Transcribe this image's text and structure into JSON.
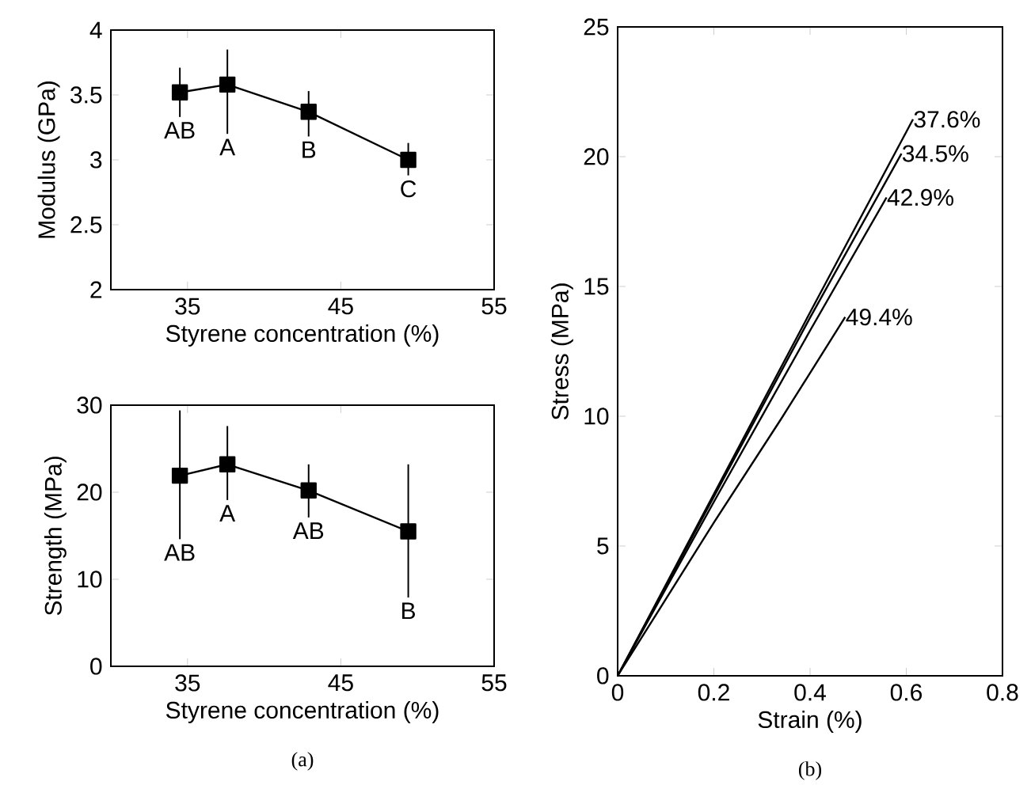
{
  "chart_data": [
    {
      "type": "line",
      "xlabel": "Styrene concentration (%)",
      "ylabel": "Modulus (GPa)",
      "xlim": [
        30,
        55
      ],
      "ylim": [
        2,
        4
      ],
      "xticks": [
        35,
        45,
        55
      ],
      "yticks": [
        2,
        2.5,
        3,
        3.5,
        4
      ],
      "marker": "square",
      "series": [
        {
          "color": "#000000",
          "x": [
            34.5,
            37.6,
            42.9,
            49.4
          ],
          "values": [
            3.52,
            3.58,
            3.37,
            3.0
          ],
          "errors": [
            [
              3.33,
              3.71
            ],
            [
              3.2,
              3.85
            ],
            [
              3.18,
              3.53
            ],
            [
              2.88,
              3.13
            ]
          ]
        }
      ],
      "annotations": [
        {
          "text": "AB",
          "x": 34.5,
          "y": 3.52
        },
        {
          "text": "A",
          "x": 37.6,
          "y": 3.58
        },
        {
          "text": "B",
          "x": 42.9,
          "y": 3.37
        },
        {
          "text": "C",
          "x": 49.4,
          "y": 3.0
        }
      ]
    },
    {
      "type": "line",
      "xlabel": "Styrene concentration (%)",
      "ylabel": "Strength (MPa)",
      "xlim": [
        30,
        55
      ],
      "ylim": [
        0,
        30
      ],
      "xticks": [
        35,
        45,
        55
      ],
      "yticks": [
        0,
        10,
        20,
        30
      ],
      "marker": "square",
      "series": [
        {
          "color": "#000000",
          "x": [
            34.5,
            37.6,
            42.9,
            49.4
          ],
          "values": [
            21.9,
            23.2,
            20.2,
            15.5
          ],
          "errors": [
            [
              14.6,
              29.4
            ],
            [
              19.1,
              27.6
            ],
            [
              17.1,
              23.2
            ],
            [
              7.9,
              23.2
            ]
          ]
        }
      ],
      "annotations": [
        {
          "text": "AB",
          "x": 34.5,
          "y": 21.9
        },
        {
          "text": "A",
          "x": 37.6,
          "y": 23.2
        },
        {
          "text": "AB",
          "x": 42.9,
          "y": 20.2
        },
        {
          "text": "B",
          "x": 49.4,
          "y": 7.9
        },
        "(a)"
      ]
    },
    {
      "type": "line",
      "xlabel": "Strain (%)",
      "ylabel": "Stress (MPa)",
      "xlim": [
        0,
        0.8
      ],
      "ylim": [
        0,
        25
      ],
      "xticks": [
        0,
        0.2,
        0.4,
        0.6,
        0.8
      ],
      "yticks": [
        0,
        5,
        10,
        15,
        20,
        25
      ],
      "series": [
        {
          "name": "37.6%",
          "color": "#000000",
          "x": [
            0,
            0.2,
            0.4,
            0.614
          ],
          "values": [
            0,
            7.0,
            14.0,
            21.44
          ]
        },
        {
          "name": "34.5%",
          "color": "#000000",
          "x": [
            0,
            0.2,
            0.4,
            0.59
          ],
          "values": [
            0,
            6.9,
            13.8,
            20.12
          ]
        },
        {
          "name": "42.9%",
          "color": "#000000",
          "x": [
            0,
            0.2,
            0.4,
            0.559
          ],
          "values": [
            0,
            6.7,
            13.3,
            18.43
          ]
        },
        {
          "name": "49.4%",
          "color": "#000000",
          "x": [
            0,
            0.2,
            0.34,
            0.473
          ],
          "values": [
            0,
            5.9,
            9.9,
            13.82
          ]
        }
      ],
      "annotations": [
        "(b)"
      ]
    }
  ]
}
